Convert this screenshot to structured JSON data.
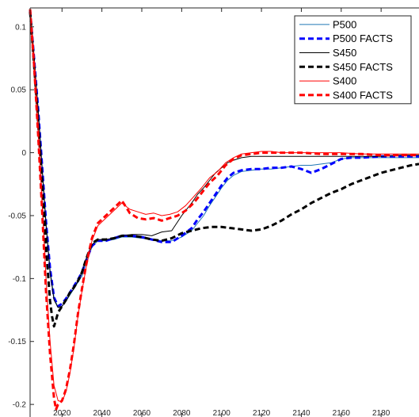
{
  "chart_data": {
    "type": "line",
    "title": "",
    "xlabel": "",
    "ylabel": "",
    "xlim": [
      2004,
      2199
    ],
    "ylim": [
      -0.21,
      0.115
    ],
    "grid": false,
    "legend_position": "top-right",
    "x_ticks": [
      2020,
      2040,
      2060,
      2080,
      2100,
      2120,
      2140,
      2160,
      2180
    ],
    "y_ticks": [
      0.1,
      0.05,
      0,
      -0.05,
      -0.1,
      -0.15,
      -0.2
    ],
    "x_tick_labels": [
      "2020",
      "2040",
      "2060",
      "2080",
      "2100",
      "2120",
      "2140",
      "2160",
      "2180"
    ],
    "y_tick_labels": [
      "0.1",
      "0.05",
      "0",
      "-0.05",
      "-0.1",
      "-0.15",
      "-0.2"
    ],
    "series": [
      {
        "name": "P500",
        "color": "#1f77b4",
        "dash": "solid",
        "points": [
          [
            2004,
            0.112
          ],
          [
            2006,
            0.075
          ],
          [
            2008,
            0.035
          ],
          [
            2010,
            -0.01
          ],
          [
            2012,
            -0.055
          ],
          [
            2014,
            -0.093
          ],
          [
            2016,
            -0.115
          ],
          [
            2018,
            -0.123
          ],
          [
            2020,
            -0.122
          ],
          [
            2022,
            -0.118
          ],
          [
            2024,
            -0.113
          ],
          [
            2026,
            -0.108
          ],
          [
            2028,
            -0.103
          ],
          [
            2030,
            -0.098
          ],
          [
            2032,
            -0.088
          ],
          [
            2035,
            -0.075
          ],
          [
            2038,
            -0.07
          ],
          [
            2042,
            -0.07
          ],
          [
            2046,
            -0.069
          ],
          [
            2050,
            -0.067
          ],
          [
            2055,
            -0.067
          ],
          [
            2060,
            -0.068
          ],
          [
            2065,
            -0.069
          ],
          [
            2070,
            -0.07
          ],
          [
            2075,
            -0.07
          ],
          [
            2080,
            -0.067
          ],
          [
            2085,
            -0.062
          ],
          [
            2088,
            -0.056
          ],
          [
            2091,
            -0.05
          ],
          [
            2094,
            -0.042
          ],
          [
            2097,
            -0.035
          ],
          [
            2100,
            -0.028
          ],
          [
            2103,
            -0.022
          ],
          [
            2106,
            -0.018
          ],
          [
            2110,
            -0.015
          ],
          [
            2115,
            -0.014
          ],
          [
            2120,
            -0.013
          ],
          [
            2125,
            -0.013
          ],
          [
            2130,
            -0.012
          ],
          [
            2135,
            -0.011
          ],
          [
            2140,
            -0.01
          ],
          [
            2145,
            -0.01
          ],
          [
            2150,
            -0.009
          ],
          [
            2155,
            -0.008
          ],
          [
            2160,
            -0.005
          ],
          [
            2165,
            -0.004
          ],
          [
            2170,
            -0.004
          ],
          [
            2180,
            -0.004
          ],
          [
            2190,
            -0.004
          ],
          [
            2199,
            -0.004
          ]
        ]
      },
      {
        "name": "P500 FACTS",
        "color": "#0000ff",
        "dash": "dashed",
        "points": [
          [
            2004,
            0.113
          ],
          [
            2006,
            0.075
          ],
          [
            2008,
            0.035
          ],
          [
            2010,
            -0.01
          ],
          [
            2012,
            -0.055
          ],
          [
            2014,
            -0.092
          ],
          [
            2016,
            -0.115
          ],
          [
            2018,
            -0.122
          ],
          [
            2020,
            -0.12
          ],
          [
            2022,
            -0.116
          ],
          [
            2024,
            -0.111
          ],
          [
            2026,
            -0.106
          ],
          [
            2028,
            -0.101
          ],
          [
            2030,
            -0.095
          ],
          [
            2032,
            -0.086
          ],
          [
            2035,
            -0.074
          ],
          [
            2038,
            -0.07
          ],
          [
            2042,
            -0.07
          ],
          [
            2046,
            -0.068
          ],
          [
            2050,
            -0.066
          ],
          [
            2055,
            -0.066
          ],
          [
            2060,
            -0.067
          ],
          [
            2065,
            -0.069
          ],
          [
            2070,
            -0.071
          ],
          [
            2075,
            -0.071
          ],
          [
            2080,
            -0.066
          ],
          [
            2085,
            -0.06
          ],
          [
            2088,
            -0.053
          ],
          [
            2091,
            -0.047
          ],
          [
            2094,
            -0.04
          ],
          [
            2097,
            -0.033
          ],
          [
            2100,
            -0.026
          ],
          [
            2103,
            -0.02
          ],
          [
            2106,
            -0.016
          ],
          [
            2110,
            -0.014
          ],
          [
            2115,
            -0.013
          ],
          [
            2120,
            -0.013
          ],
          [
            2125,
            -0.012
          ],
          [
            2130,
            -0.012
          ],
          [
            2135,
            -0.011
          ],
          [
            2140,
            -0.013
          ],
          [
            2145,
            -0.016
          ],
          [
            2150,
            -0.013
          ],
          [
            2155,
            -0.009
          ],
          [
            2160,
            -0.005
          ],
          [
            2165,
            -0.004
          ],
          [
            2170,
            -0.004
          ],
          [
            2180,
            -0.003
          ],
          [
            2190,
            -0.003
          ],
          [
            2199,
            -0.003
          ]
        ]
      },
      {
        "name": "S450",
        "color": "#000000",
        "dash": "solid",
        "points": [
          [
            2004,
            0.113
          ],
          [
            2006,
            0.075
          ],
          [
            2008,
            0.035
          ],
          [
            2010,
            -0.012
          ],
          [
            2012,
            -0.057
          ],
          [
            2014,
            -0.095
          ],
          [
            2016,
            -0.117
          ],
          [
            2018,
            -0.123
          ],
          [
            2020,
            -0.122
          ],
          [
            2022,
            -0.118
          ],
          [
            2024,
            -0.112
          ],
          [
            2026,
            -0.108
          ],
          [
            2028,
            -0.102
          ],
          [
            2030,
            -0.095
          ],
          [
            2032,
            -0.085
          ],
          [
            2035,
            -0.073
          ],
          [
            2038,
            -0.069
          ],
          [
            2042,
            -0.069
          ],
          [
            2046,
            -0.068
          ],
          [
            2050,
            -0.066
          ],
          [
            2055,
            -0.065
          ],
          [
            2060,
            -0.065
          ],
          [
            2065,
            -0.066
          ],
          [
            2070,
            -0.063
          ],
          [
            2075,
            -0.062
          ],
          [
            2080,
            -0.05
          ],
          [
            2085,
            -0.04
          ],
          [
            2088,
            -0.033
          ],
          [
            2091,
            -0.028
          ],
          [
            2094,
            -0.022
          ],
          [
            2097,
            -0.016
          ],
          [
            2100,
            -0.012
          ],
          [
            2103,
            -0.008
          ],
          [
            2106,
            -0.006
          ],
          [
            2110,
            -0.004
          ],
          [
            2115,
            -0.003
          ],
          [
            2120,
            -0.003
          ],
          [
            2130,
            -0.003
          ],
          [
            2140,
            -0.003
          ],
          [
            2150,
            -0.003
          ],
          [
            2160,
            -0.003
          ],
          [
            2170,
            -0.003
          ],
          [
            2180,
            -0.003
          ],
          [
            2190,
            -0.002
          ],
          [
            2199,
            -0.002
          ]
        ]
      },
      {
        "name": "S450 FACTS",
        "color": "#000000",
        "dash": "dashed",
        "points": [
          [
            2004,
            0.112
          ],
          [
            2006,
            0.07
          ],
          [
            2008,
            0.025
          ],
          [
            2010,
            -0.025
          ],
          [
            2012,
            -0.075
          ],
          [
            2014,
            -0.118
          ],
          [
            2015,
            -0.13
          ],
          [
            2016,
            -0.138
          ],
          [
            2017,
            -0.133
          ],
          [
            2018,
            -0.127
          ],
          [
            2020,
            -0.122
          ],
          [
            2022,
            -0.117
          ],
          [
            2024,
            -0.111
          ],
          [
            2026,
            -0.107
          ],
          [
            2028,
            -0.102
          ],
          [
            2030,
            -0.095
          ],
          [
            2032,
            -0.085
          ],
          [
            2035,
            -0.072
          ],
          [
            2038,
            -0.069
          ],
          [
            2042,
            -0.069
          ],
          [
            2046,
            -0.068
          ],
          [
            2050,
            -0.066
          ],
          [
            2055,
            -0.066
          ],
          [
            2060,
            -0.067
          ],
          [
            2065,
            -0.069
          ],
          [
            2070,
            -0.07
          ],
          [
            2075,
            -0.068
          ],
          [
            2080,
            -0.064
          ],
          [
            2085,
            -0.062
          ],
          [
            2090,
            -0.06
          ],
          [
            2095,
            -0.059
          ],
          [
            2100,
            -0.059
          ],
          [
            2105,
            -0.06
          ],
          [
            2110,
            -0.061
          ],
          [
            2115,
            -0.062
          ],
          [
            2120,
            -0.061
          ],
          [
            2125,
            -0.058
          ],
          [
            2130,
            -0.054
          ],
          [
            2135,
            -0.049
          ],
          [
            2140,
            -0.045
          ],
          [
            2145,
            -0.04
          ],
          [
            2150,
            -0.036
          ],
          [
            2155,
            -0.032
          ],
          [
            2160,
            -0.029
          ],
          [
            2165,
            -0.025
          ],
          [
            2170,
            -0.022
          ],
          [
            2175,
            -0.019
          ],
          [
            2180,
            -0.016
          ],
          [
            2185,
            -0.014
          ],
          [
            2190,
            -0.012
          ],
          [
            2195,
            -0.01
          ],
          [
            2199,
            -0.009
          ]
        ]
      },
      {
        "name": "S400",
        "color": "#ff0000",
        "dash": "solid",
        "points": [
          [
            2004,
            0.112
          ],
          [
            2006,
            0.07
          ],
          [
            2008,
            0.02
          ],
          [
            2010,
            -0.04
          ],
          [
            2012,
            -0.1
          ],
          [
            2014,
            -0.15
          ],
          [
            2016,
            -0.185
          ],
          [
            2018,
            -0.197
          ],
          [
            2020,
            -0.198
          ],
          [
            2022,
            -0.19
          ],
          [
            2024,
            -0.175
          ],
          [
            2026,
            -0.155
          ],
          [
            2028,
            -0.13
          ],
          [
            2030,
            -0.11
          ],
          [
            2032,
            -0.092
          ],
          [
            2035,
            -0.07
          ],
          [
            2038,
            -0.058
          ],
          [
            2042,
            -0.052
          ],
          [
            2046,
            -0.046
          ],
          [
            2050,
            -0.04
          ],
          [
            2054,
            -0.045
          ],
          [
            2058,
            -0.047
          ],
          [
            2062,
            -0.049
          ],
          [
            2066,
            -0.048
          ],
          [
            2070,
            -0.05
          ],
          [
            2074,
            -0.049
          ],
          [
            2078,
            -0.047
          ],
          [
            2082,
            -0.042
          ],
          [
            2086,
            -0.035
          ],
          [
            2090,
            -0.028
          ],
          [
            2094,
            -0.02
          ],
          [
            2098,
            -0.015
          ],
          [
            2102,
            -0.008
          ],
          [
            2106,
            -0.004
          ],
          [
            2110,
            -0.001
          ],
          [
            2115,
            0.0
          ],
          [
            2120,
            0.001
          ],
          [
            2125,
            0.001
          ],
          [
            2130,
            0.0
          ],
          [
            2140,
            0.0
          ],
          [
            2150,
            0.0
          ],
          [
            2160,
            0.0
          ],
          [
            2170,
            -0.001
          ],
          [
            2180,
            -0.001
          ],
          [
            2190,
            -0.001
          ],
          [
            2199,
            -0.001
          ]
        ]
      },
      {
        "name": "S400 FACTS",
        "color": "#ff0000",
        "dash": "dashed",
        "points": [
          [
            2004,
            0.114
          ],
          [
            2006,
            0.07
          ],
          [
            2008,
            0.015
          ],
          [
            2010,
            -0.045
          ],
          [
            2012,
            -0.11
          ],
          [
            2014,
            -0.16
          ],
          [
            2016,
            -0.195
          ],
          [
            2017,
            -0.204
          ],
          [
            2018,
            -0.2
          ],
          [
            2020,
            -0.197
          ],
          [
            2022,
            -0.188
          ],
          [
            2024,
            -0.172
          ],
          [
            2026,
            -0.152
          ],
          [
            2028,
            -0.128
          ],
          [
            2030,
            -0.108
          ],
          [
            2032,
            -0.09
          ],
          [
            2035,
            -0.068
          ],
          [
            2038,
            -0.056
          ],
          [
            2042,
            -0.05
          ],
          [
            2046,
            -0.044
          ],
          [
            2050,
            -0.038
          ],
          [
            2054,
            -0.048
          ],
          [
            2058,
            -0.052
          ],
          [
            2062,
            -0.053
          ],
          [
            2066,
            -0.052
          ],
          [
            2070,
            -0.054
          ],
          [
            2074,
            -0.052
          ],
          [
            2078,
            -0.05
          ],
          [
            2082,
            -0.046
          ],
          [
            2086,
            -0.04
          ],
          [
            2090,
            -0.032
          ],
          [
            2094,
            -0.024
          ],
          [
            2098,
            -0.018
          ],
          [
            2102,
            -0.01
          ],
          [
            2106,
            -0.005
          ],
          [
            2110,
            -0.002
          ],
          [
            2115,
            -0.001
          ],
          [
            2120,
            0.0
          ],
          [
            2125,
            0.0
          ],
          [
            2130,
            0.0
          ],
          [
            2140,
            0.0
          ],
          [
            2150,
            -0.001
          ],
          [
            2160,
            -0.001
          ],
          [
            2170,
            -0.001
          ],
          [
            2180,
            -0.002
          ],
          [
            2190,
            -0.002
          ],
          [
            2199,
            -0.002
          ]
        ]
      }
    ]
  }
}
